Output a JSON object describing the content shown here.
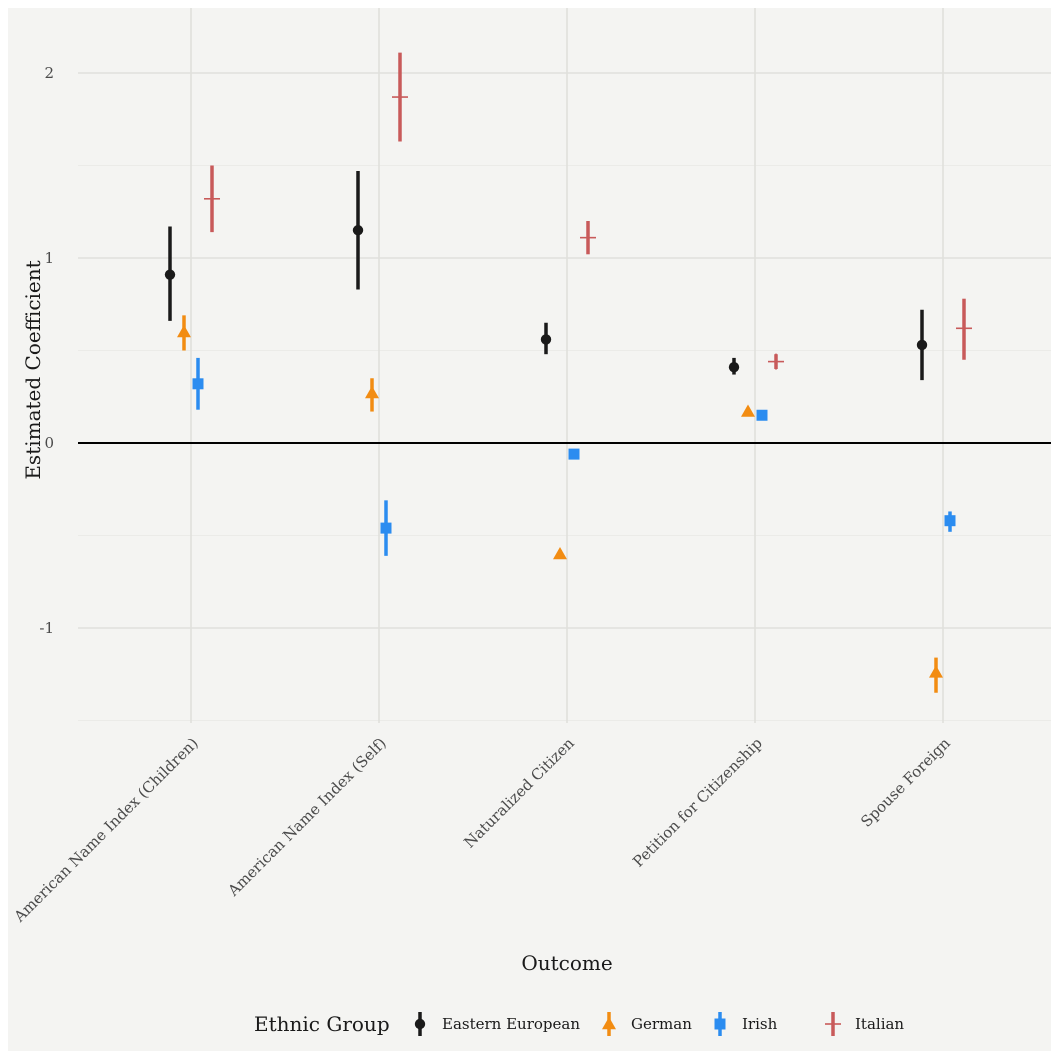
{
  "chart_data": {
    "type": "scatter",
    "subtype": "point-range (coefficient plot)",
    "title": "",
    "xlabel": "Outcome",
    "ylabel": "Estimated Coefficient",
    "categories": [
      "American Name Index (Children)",
      "American Name Index (Self)",
      "Naturalized Citizen",
      "Petition for Citizenship",
      "Spouse Foreign"
    ],
    "y_ticks": [
      -1,
      0,
      1,
      2
    ],
    "y_tick_labels": [
      "-1",
      "0",
      "1",
      "2"
    ],
    "ylim": [
      -1.5,
      2.2
    ],
    "reference_line_y": 0,
    "grid": true,
    "legend": {
      "title": "Ethnic Group",
      "position": "bottom"
    },
    "series": [
      {
        "name": "Eastern European",
        "color": "#1a1a1a",
        "marker": "circle",
        "values": [
          0.91,
          1.15,
          0.56,
          0.41,
          0.53
        ],
        "lower": [
          0.66,
          0.83,
          0.48,
          0.37,
          0.34
        ],
        "upper": [
          1.17,
          1.47,
          0.65,
          0.46,
          0.72
        ]
      },
      {
        "name": "German",
        "color": "#f28c12",
        "marker": "triangle",
        "values": [
          0.6,
          0.27,
          -0.6,
          0.17,
          -1.24
        ],
        "lower": [
          0.5,
          0.17,
          -0.62,
          0.15,
          -1.35
        ],
        "upper": [
          0.69,
          0.35,
          -0.58,
          0.19,
          -1.16
        ]
      },
      {
        "name": "Irish",
        "color": "#2b8cf0",
        "marker": "square",
        "values": [
          0.32,
          -0.46,
          -0.06,
          0.15,
          -0.42
        ],
        "lower": [
          0.18,
          -0.61,
          -0.08,
          0.13,
          -0.48
        ],
        "upper": [
          0.46,
          -0.31,
          -0.04,
          0.17,
          -0.37
        ]
      },
      {
        "name": "Italian",
        "color": "#c85a5a",
        "marker": "cross",
        "values": [
          1.32,
          1.87,
          1.11,
          0.44,
          0.62
        ],
        "lower": [
          1.14,
          1.63,
          1.02,
          0.4,
          0.45
        ],
        "upper": [
          1.5,
          2.11,
          1.2,
          0.48,
          0.78
        ]
      }
    ]
  }
}
